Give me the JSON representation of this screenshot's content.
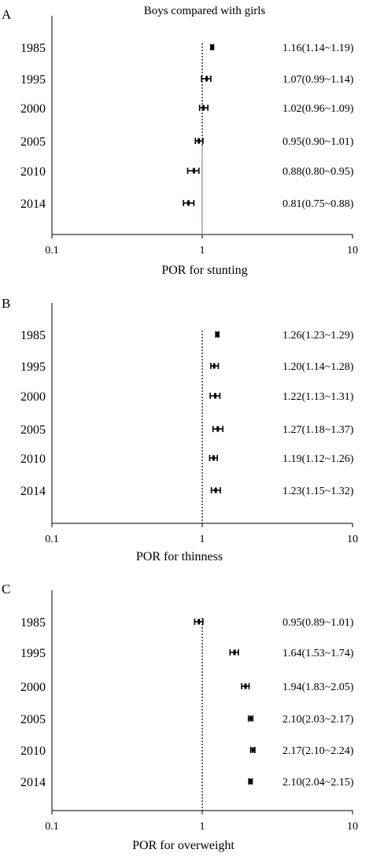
{
  "chart_data": [
    {
      "type": "forest",
      "panel_label": "A",
      "title": "Boys compared with girls",
      "xlabel": "POR for stunting",
      "x_scale": "log",
      "xlim": [
        0.1,
        10
      ],
      "x_ticks": [
        "0.1",
        "1",
        "10"
      ],
      "reference_line": 1,
      "reference_line_color": "#9aa9cf",
      "categories": [
        "1985",
        "1995",
        "2000",
        "2005",
        "2010",
        "2014"
      ],
      "estimates": [
        1.16,
        1.07,
        1.02,
        0.95,
        0.88,
        0.81
      ],
      "lower": [
        1.14,
        0.99,
        0.96,
        0.9,
        0.8,
        0.75
      ],
      "upper": [
        1.19,
        1.14,
        1.09,
        1.01,
        0.95,
        0.88
      ],
      "labels": [
        "1.16(1.14~1.19)",
        "1.07(0.99~1.14)",
        "1.02(0.96~1.09)",
        "0.95(0.90~1.01)",
        "0.88(0.80~0.95)",
        "0.81(0.75~0.88)"
      ]
    },
    {
      "type": "forest",
      "panel_label": "B",
      "title": "",
      "xlabel": "POR for thinness",
      "x_scale": "log",
      "xlim": [
        0.1,
        10
      ],
      "x_ticks": [
        "0.1",
        "1",
        "10"
      ],
      "reference_line": 1,
      "categories": [
        "1985",
        "1995",
        "2000",
        "2005",
        "2010",
        "2014"
      ],
      "estimates": [
        1.26,
        1.2,
        1.22,
        1.27,
        1.19,
        1.23
      ],
      "lower": [
        1.23,
        1.14,
        1.13,
        1.18,
        1.12,
        1.15
      ],
      "upper": [
        1.29,
        1.28,
        1.31,
        1.37,
        1.26,
        1.32
      ],
      "labels": [
        "1.26(1.23~1.29)",
        "1.20(1.14~1.28)",
        "1.22(1.13~1.31)",
        "1.27(1.18~1.37)",
        "1.19(1.12~1.26)",
        "1.23(1.15~1.32)"
      ]
    },
    {
      "type": "forest",
      "panel_label": "C",
      "title": "",
      "xlabel": "POR for overweight",
      "x_scale": "log",
      "xlim": [
        0.1,
        10
      ],
      "x_ticks": [
        "0.1",
        "1",
        "10"
      ],
      "reference_line": 1,
      "categories": [
        "1985",
        "1995",
        "2000",
        "2005",
        "2010",
        "2014"
      ],
      "estimates": [
        0.95,
        1.64,
        1.94,
        2.1,
        2.17,
        2.1
      ],
      "lower": [
        0.89,
        1.53,
        1.83,
        2.03,
        2.1,
        2.04
      ],
      "upper": [
        1.01,
        1.74,
        2.05,
        2.17,
        2.24,
        2.15
      ],
      "labels": [
        "0.95(0.89~1.01)",
        "1.64(1.53~1.74)",
        "1.94(1.83~2.05)",
        "2.10(2.03~2.17)",
        "2.17(2.10~2.24)",
        "2.10(2.04~2.15)"
      ]
    }
  ]
}
